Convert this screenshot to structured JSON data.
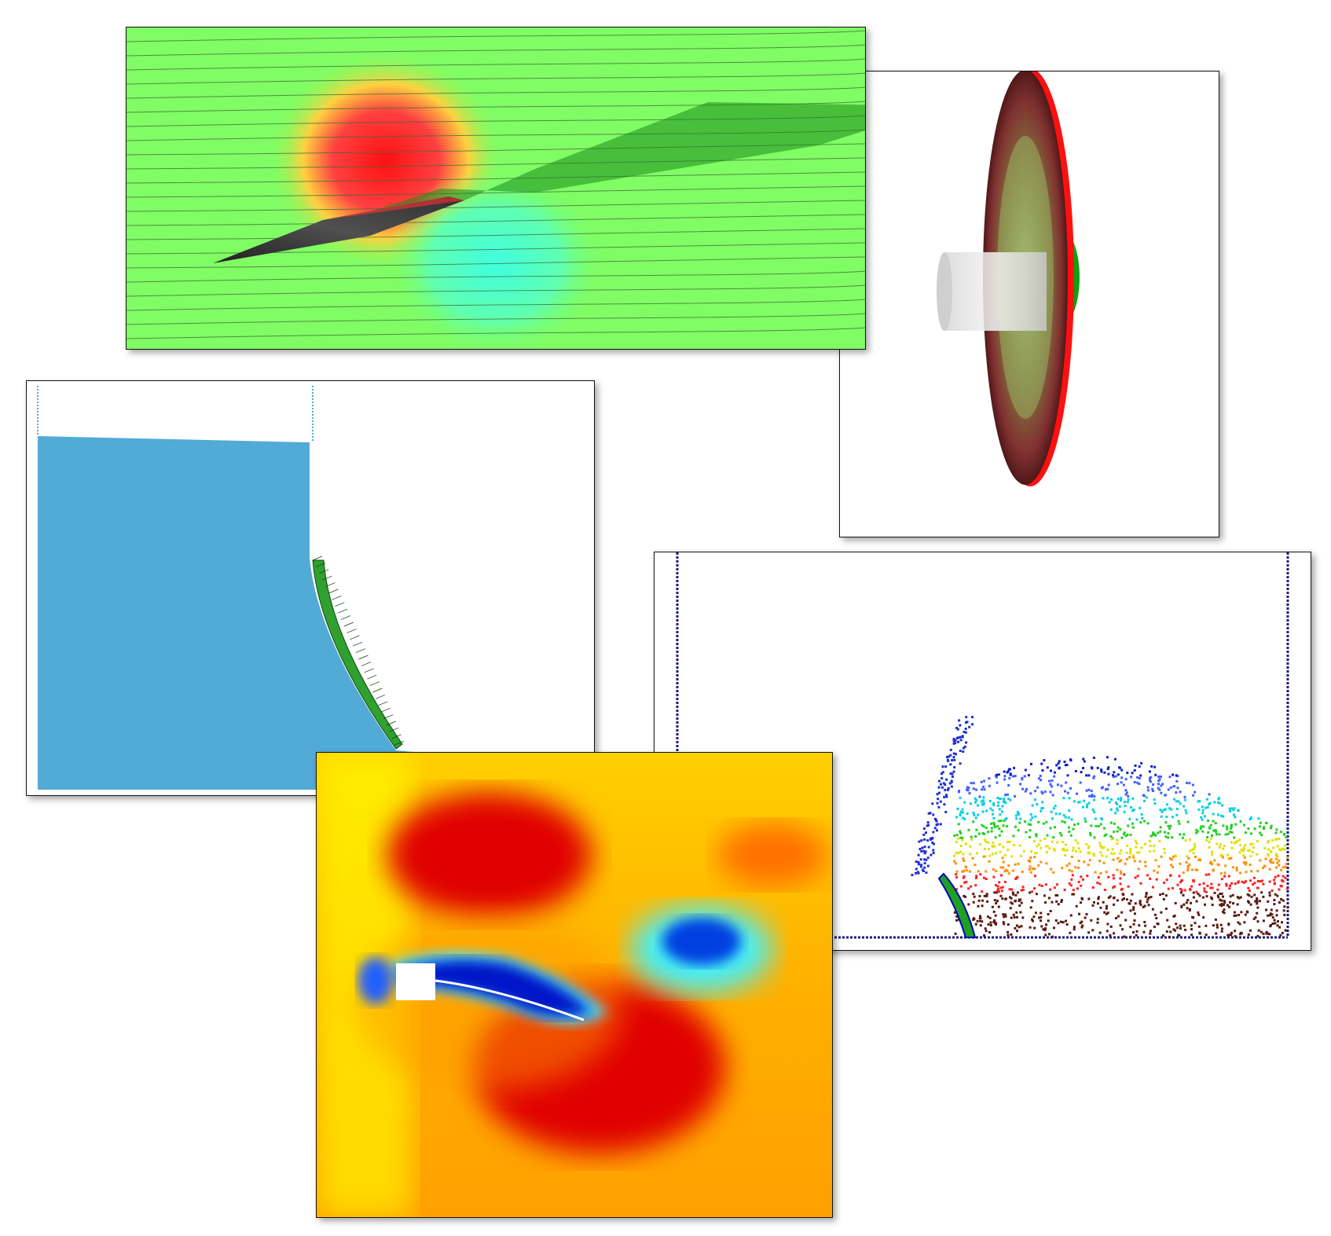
{
  "panels": [
    {
      "id": "wing",
      "description_icon": "flapping-wing-streamline-simulation"
    },
    {
      "id": "disc",
      "description_icon": "parachute-disc-simulation"
    },
    {
      "id": "dam",
      "description_icon": "dam-break-elastic-gate-simulation"
    },
    {
      "id": "sph",
      "description_icon": "sph-particle-sloshing-simulation"
    },
    {
      "id": "vortex",
      "description_icon": "cylinder-flag-vortex-simulation"
    }
  ],
  "colors": {
    "field_green": "#7cfc60",
    "field_red": "#ff2020",
    "field_yellow": "#ffff40",
    "water_blue": "#4fa8d8",
    "deep_blue": "#0010c0",
    "dark_red": "#a00000",
    "particle_brown": "#5a1a10"
  }
}
